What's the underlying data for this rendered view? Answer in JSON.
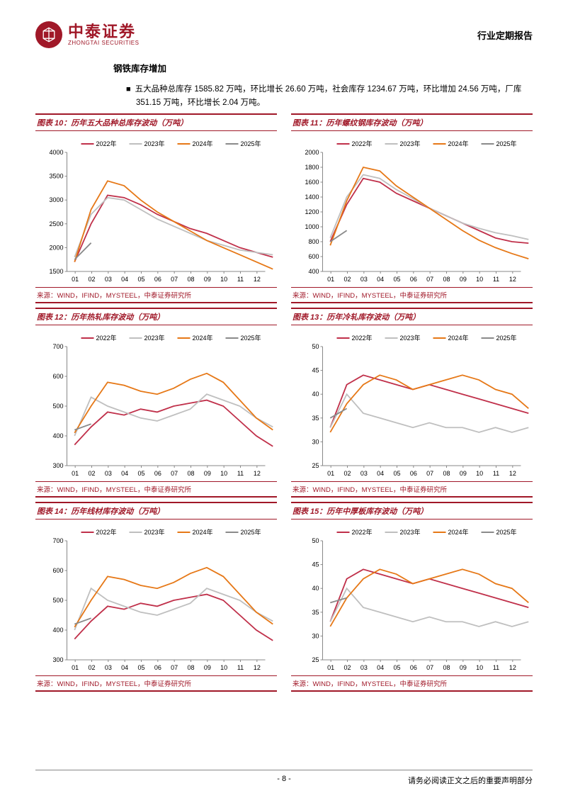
{
  "header": {
    "logo_cn": "中泰证券",
    "logo_en": "ZHONGTAI SECURITIES",
    "report_type": "行业定期报告"
  },
  "section_title": "钢铁库存增加",
  "body_paragraph": "五大品种总库存 1585.82 万吨，环比增长 26.60 万吨，社会库存 1234.67 万吨，环比增加 24.56 万吨，厂库 351.15 万吨，环比增长 2.04 万吨。",
  "colors": {
    "brand": "#a01828",
    "s2022": "#c0304a",
    "s2023": "#bfbfbf",
    "s2024": "#e67817",
    "s2025": "#8a8a8a",
    "axis": "#888888",
    "tick_text": "#000000"
  },
  "legend_labels": [
    "2022年",
    "2023年",
    "2024年",
    "2025年"
  ],
  "x_labels": [
    "01",
    "02",
    "03",
    "04",
    "05",
    "06",
    "07",
    "08",
    "09",
    "10",
    "11",
    "12"
  ],
  "source_text": "来源：WIND，IFIND，MYSTEEL，中泰证券研究所",
  "charts": [
    {
      "id": "chart10",
      "title": "图表 10：历年五大品种总库存波动（万吨）",
      "ylim": [
        1500,
        4000
      ],
      "ytick_step": 500,
      "series": {
        "2022": [
          1700,
          2500,
          3100,
          3050,
          2900,
          2700,
          2550,
          2400,
          2300,
          2150,
          2000,
          1900,
          1800
        ],
        "2023": [
          1800,
          2700,
          3050,
          3000,
          2800,
          2600,
          2450,
          2300,
          2150,
          2050,
          1950,
          1900,
          1850
        ],
        "2024": [
          1700,
          2800,
          3400,
          3300,
          3000,
          2750,
          2550,
          2350,
          2150,
          2000,
          1850,
          1700,
          1550
        ],
        "2025": [
          1750,
          2100
        ]
      }
    },
    {
      "id": "chart11",
      "title": "图表 11：历年螺纹钢库存波动（万吨）",
      "ylim": [
        400,
        2000
      ],
      "ytick_step": 200,
      "series": {
        "2022": [
          800,
          1300,
          1650,
          1600,
          1450,
          1350,
          1250,
          1150,
          1050,
          950,
          850,
          800,
          780
        ],
        "2023": [
          850,
          1400,
          1700,
          1650,
          1500,
          1380,
          1250,
          1150,
          1050,
          980,
          920,
          880,
          830
        ],
        "2024": [
          750,
          1350,
          1800,
          1750,
          1550,
          1400,
          1250,
          1100,
          950,
          820,
          720,
          640,
          570
        ],
        "2025": [
          800,
          950
        ]
      }
    },
    {
      "id": "chart12",
      "title": "图表 12：历年热轧库存波动（万吨）",
      "ylim": [
        300,
        700
      ],
      "ytick_step": 100,
      "series": {
        "2022": [
          370,
          430,
          480,
          470,
          490,
          480,
          500,
          510,
          520,
          500,
          450,
          400,
          365
        ],
        "2023": [
          400,
          530,
          500,
          480,
          460,
          450,
          470,
          490,
          540,
          520,
          500,
          460,
          430
        ],
        "2024": [
          410,
          500,
          580,
          570,
          550,
          540,
          560,
          590,
          610,
          580,
          520,
          460,
          420
        ],
        "2025": [
          420,
          440
        ]
      }
    },
    {
      "id": "chart13",
      "title": "图表 13：历年冷轧库存波动（万吨）",
      "ylim": [
        25,
        50
      ],
      "ytick_step": 5,
      "series": {
        "2022": [
          33,
          42,
          44,
          43,
          42,
          41,
          42,
          41,
          40,
          39,
          38,
          37,
          36
        ],
        "2023": [
          33,
          40,
          36,
          35,
          34,
          33,
          34,
          33,
          33,
          32,
          33,
          32,
          33
        ],
        "2024": [
          32,
          38,
          42,
          44,
          43,
          41,
          42,
          43,
          44,
          43,
          41,
          40,
          37
        ],
        "2025": [
          35,
          37
        ]
      }
    },
    {
      "id": "chart14",
      "title": "图表 14：历年线材库存波动（万吨）",
      "ylim": [
        300,
        700
      ],
      "ytick_step": 100,
      "series": {
        "2022": [
          370,
          430,
          480,
          470,
          490,
          480,
          500,
          510,
          520,
          500,
          450,
          400,
          365
        ],
        "2023": [
          400,
          540,
          500,
          480,
          460,
          450,
          470,
          490,
          540,
          520,
          500,
          460,
          430
        ],
        "2024": [
          410,
          500,
          580,
          570,
          550,
          540,
          560,
          590,
          610,
          580,
          520,
          460,
          420
        ],
        "2025": [
          420,
          440
        ]
      }
    },
    {
      "id": "chart15",
      "title": "图表 15：历年中厚板库存波动（万吨）",
      "ylim": [
        25,
        50
      ],
      "ytick_step": 5,
      "series": {
        "2022": [
          33,
          42,
          44,
          43,
          42,
          41,
          42,
          41,
          40,
          39,
          38,
          37,
          36
        ],
        "2023": [
          33,
          40,
          36,
          35,
          34,
          33,
          34,
          33,
          33,
          32,
          33,
          32,
          33
        ],
        "2024": [
          32,
          38,
          42,
          44,
          43,
          41,
          42,
          43,
          44,
          43,
          41,
          40,
          37
        ],
        "2025": [
          37,
          38
        ]
      }
    }
  ],
  "footer": {
    "page": "- 8 -",
    "disclaimer": "请务必阅读正文之后的重要声明部分"
  }
}
